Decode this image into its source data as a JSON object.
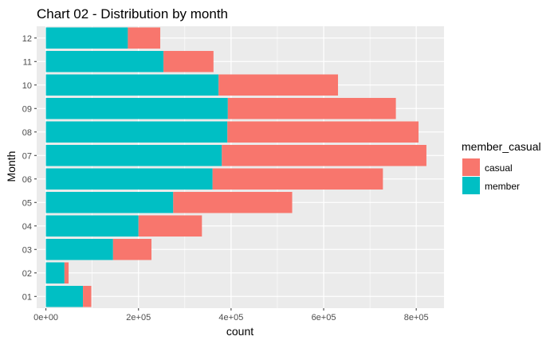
{
  "chart_data": {
    "type": "bar",
    "orientation": "horizontal",
    "stacked": true,
    "title": "Chart 02 - Distribution by month",
    "xlabel": "count",
    "ylabel": "Month",
    "categories": [
      "01",
      "02",
      "03",
      "04",
      "05",
      "06",
      "07",
      "08",
      "09",
      "10",
      "11",
      "12"
    ],
    "series": [
      {
        "name": "member",
        "color": "#00BFC4",
        "values": [
          80000,
          40000,
          145000,
          200000,
          275000,
          360000,
          380000,
          392000,
          393000,
          373000,
          254000,
          177000
        ]
      },
      {
        "name": "casual",
        "color": "#F8766D",
        "values": [
          18000,
          9000,
          83000,
          137000,
          257000,
          368000,
          442000,
          413000,
          363000,
          258000,
          108000,
          70000
        ]
      }
    ],
    "xlim": [
      -20000,
      860000
    ],
    "xticks": [
      0,
      200000,
      400000,
      600000,
      800000
    ],
    "xtick_labels": [
      "0e+00",
      "2e+05",
      "4e+05",
      "6e+05",
      "8e+05"
    ],
    "grid": true,
    "legend": {
      "title": "member_casual",
      "position": "right",
      "items": [
        {
          "label": "casual",
          "color": "#F8766D"
        },
        {
          "label": "member",
          "color": "#00BFC4"
        }
      ]
    }
  }
}
